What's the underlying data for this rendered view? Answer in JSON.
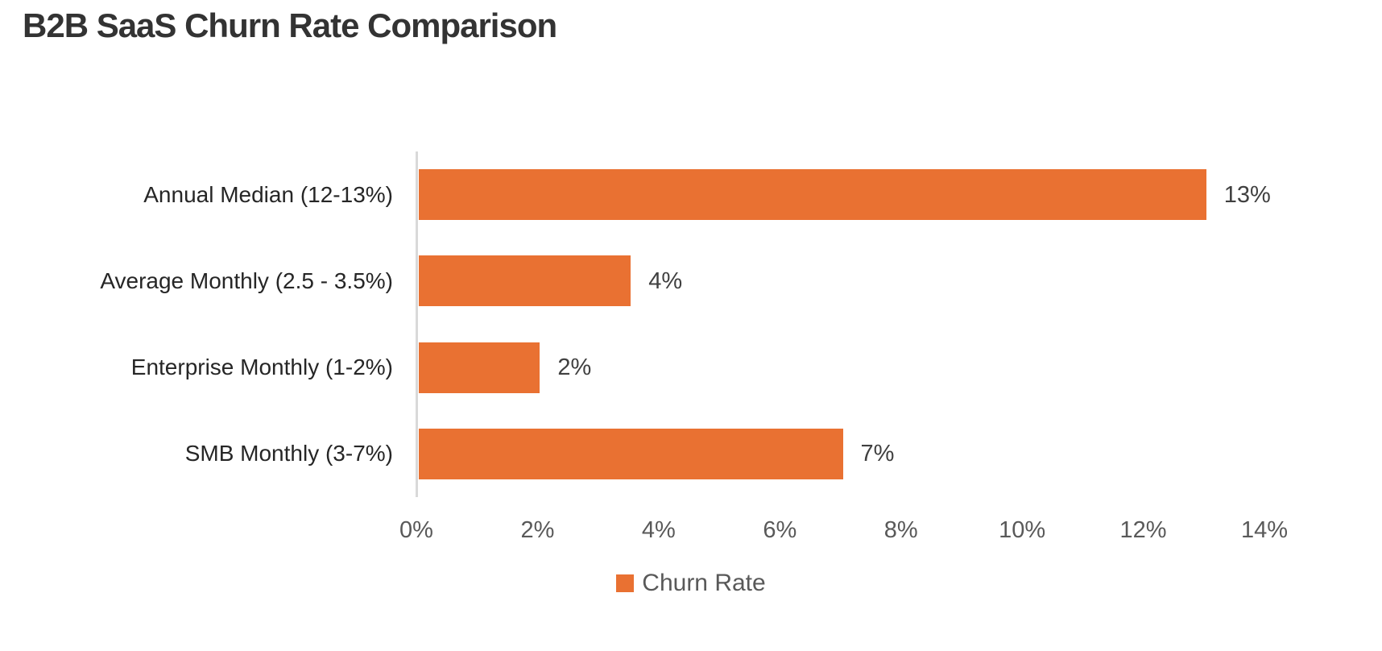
{
  "title": "B2B SaaS Churn Rate Comparison",
  "chart_data": {
    "type": "bar",
    "orientation": "horizontal",
    "title": "B2B SaaS Churn Rate Comparison",
    "series_name": "Churn Rate",
    "categories": [
      "Annual Median (12-13%)",
      "Average Monthly (2.5 - 3.5%)",
      "Enterprise Monthly (1-2%)",
      "SMB Monthly (3-7%)"
    ],
    "values": [
      13,
      3.5,
      2,
      7
    ],
    "value_labels": [
      "13%",
      "4%",
      "2%",
      "7%"
    ],
    "xlabel": "",
    "ylabel": "",
    "xlim": [
      0,
      14
    ],
    "x_ticks": [
      0,
      2,
      4,
      6,
      8,
      10,
      12,
      14
    ],
    "x_tick_labels": [
      "0%",
      "2%",
      "4%",
      "6%",
      "8%",
      "10%",
      "12%",
      "14%"
    ],
    "grid": false,
    "legend_position": "bottom-center"
  },
  "legend": {
    "items": [
      {
        "label": "Churn Rate",
        "marker": "square",
        "color": "#E97132"
      }
    ]
  },
  "colors": {
    "background": "#FFFFFF",
    "bar": "#E97132",
    "axis_line": "#D9D9D9",
    "tick_label": "#595959",
    "category_label": "#262626",
    "data_label": "#404040",
    "legend_label": "#595959",
    "title": "#333333"
  }
}
